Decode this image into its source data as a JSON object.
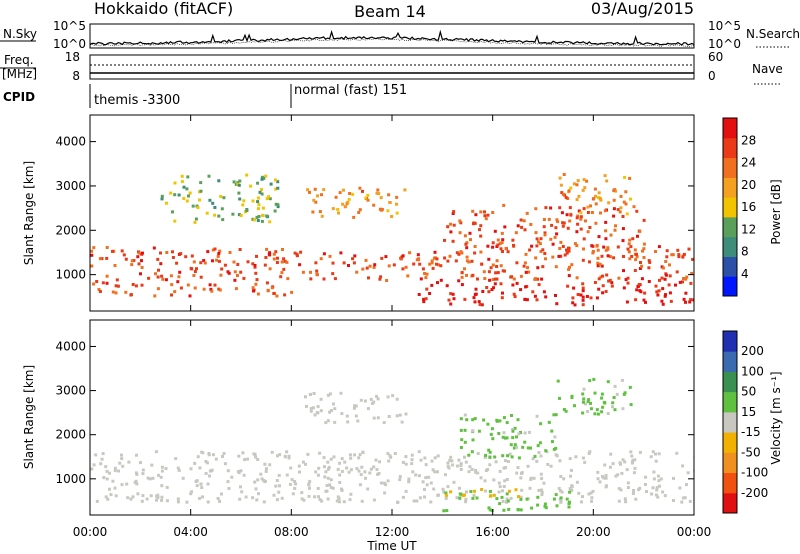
{
  "header": {
    "station": "Hokkaido (fitACF)",
    "beam": "Beam 14",
    "date": "03/Aug/2015"
  },
  "status_panels": {
    "nsky": {
      "label": "N.Sky",
      "left_ticks": [
        "10^5",
        "10^0"
      ],
      "right_label": "N.Search",
      "right_ticks": [
        "10^5",
        "10^0"
      ]
    },
    "freq": {
      "label_line1": "Freq.",
      "label_line2": "[MHz]",
      "left_ticks": [
        "18",
        "8"
      ],
      "right_label": "Nave",
      "right_ticks": [
        "60",
        "0"
      ]
    },
    "cpid": {
      "label": "CPID",
      "segments": [
        {
          "name": "themis -3300",
          "start_hour": 0,
          "end_hour": 8
        },
        {
          "name": "normal (fast) 151",
          "start_hour": 8,
          "end_hour": 24
        }
      ]
    }
  },
  "axes": {
    "xlabel": "Time UT",
    "x_ticks": [
      "00:00",
      "04:00",
      "08:00",
      "12:00",
      "16:00",
      "20:00",
      "00:00"
    ],
    "x_tick_hours": [
      0,
      4,
      8,
      12,
      16,
      20,
      24
    ],
    "ylabel": "Slant Range [km]",
    "y_ticks": [
      "1000",
      "2000",
      "3000",
      "4000"
    ],
    "y_tick_values": [
      1000,
      2000,
      3000,
      4000
    ],
    "ylim": [
      180,
      4600
    ],
    "xlim_hours": [
      0,
      24
    ]
  },
  "colorbars": {
    "power": {
      "label": "Power [dB]",
      "ticks": [
        "4",
        "8",
        "12",
        "16",
        "20",
        "24",
        "28"
      ],
      "colors": [
        "#0016ff",
        "#2c4fa8",
        "#3e8c7a",
        "#5aa05a",
        "#f2c400",
        "#f4a020",
        "#f07020",
        "#ea3a18",
        "#e41010"
      ]
    },
    "velocity": {
      "label": "Velocity [m s⁻¹]",
      "ticks": [
        "200",
        "100",
        "50",
        "15",
        "-15",
        "-50",
        "-100",
        "-200"
      ],
      "colors": [
        "#2030b0",
        "#3a6ab0",
        "#3a9050",
        "#60c040",
        "#c8c8c0",
        "#f2b000",
        "#f09020",
        "#f05010",
        "#e01010"
      ]
    }
  },
  "chart_data": {
    "type": "heatmap",
    "x_unit": "hours UT",
    "y_unit": "km",
    "power_regions": [
      {
        "t0": 0.0,
        "t1": 8.0,
        "r0": 550,
        "r1": 1650,
        "level": 24
      },
      {
        "t0": 8.0,
        "t1": 16.0,
        "r0": 900,
        "r1": 1550,
        "level": 24
      },
      {
        "t0": 16.0,
        "t1": 24.0,
        "r0": 900,
        "r1": 1700,
        "level": 24
      },
      {
        "t0": 13.0,
        "t1": 24.0,
        "r0": 350,
        "r1": 950,
        "level": 28
      },
      {
        "t0": 2.8,
        "t1": 7.5,
        "r0": 2200,
        "r1": 3300,
        "level": 12
      },
      {
        "t0": 8.5,
        "t1": 12.5,
        "r0": 2300,
        "r1": 3000,
        "level": 20
      },
      {
        "t0": 14.0,
        "t1": 22.0,
        "r0": 1500,
        "r1": 2600,
        "level": 24
      },
      {
        "t0": 18.5,
        "t1": 21.5,
        "r0": 2400,
        "r1": 3300,
        "level": 20
      }
    ],
    "velocity_regions": [
      {
        "t0": 0.0,
        "t1": 24.0,
        "r0": 500,
        "r1": 1650,
        "v": 0
      },
      {
        "t0": 8.5,
        "t1": 12.5,
        "r0": 2300,
        "r1": 3000,
        "v": 0
      },
      {
        "t0": 14.5,
        "t1": 18.5,
        "r0": 1500,
        "r1": 2500,
        "v": 20
      },
      {
        "t0": 14.0,
        "t1": 19.0,
        "r0": 300,
        "r1": 750,
        "v": 25
      },
      {
        "t0": 14.0,
        "t1": 17.0,
        "r0": 600,
        "r1": 800,
        "v": -40
      },
      {
        "t0": 18.5,
        "t1": 21.5,
        "r0": 2500,
        "r1": 3300,
        "v": 20
      }
    ]
  }
}
